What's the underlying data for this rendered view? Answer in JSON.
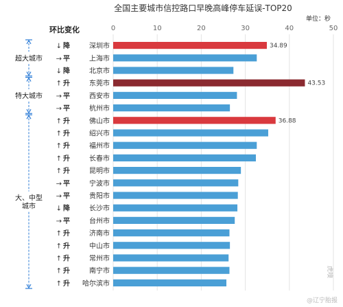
{
  "chart_data": {
    "type": "bar",
    "orientation": "horizontal",
    "title": "全国主要城市信控路口早晚高峰停车延误-TOP20",
    "unit_label": "单位：秒",
    "change_header": "环比变化",
    "xlim": [
      0,
      50
    ],
    "xticks": [
      0,
      10,
      20,
      30,
      40,
      50
    ],
    "grid": true,
    "categories": [
      "深圳市",
      "上海市",
      "北京市",
      "东莞市",
      "西安市",
      "杭州市",
      "佛山市",
      "绍兴市",
      "福州市",
      "长春市",
      "昆明市",
      "宁波市",
      "贵阳市",
      "长沙市",
      "台州市",
      "济南市",
      "中山市",
      "常州市",
      "南宁市",
      "哈尔滨市"
    ],
    "values": [
      34.89,
      32.6,
      27.3,
      43.53,
      28.1,
      26.5,
      36.88,
      35.2,
      32.6,
      32.4,
      29.0,
      28.4,
      28.3,
      28.2,
      27.6,
      26.4,
      26.5,
      26.2,
      26.4,
      25.7
    ],
    "data_labels": {
      "0": "34.89",
      "3": "43.53",
      "6": "36.88"
    },
    "changes": [
      {
        "arrow": "↓",
        "text": "降",
        "kind": "down"
      },
      {
        "arrow": "→",
        "text": "平",
        "kind": "flat"
      },
      {
        "arrow": "↓",
        "text": "降",
        "kind": "down"
      },
      {
        "arrow": "↑",
        "text": "升",
        "kind": "up"
      },
      {
        "arrow": "→",
        "text": "平",
        "kind": "flat"
      },
      {
        "arrow": "→",
        "text": "平",
        "kind": "flat"
      },
      {
        "arrow": "↑",
        "text": "升",
        "kind": "up"
      },
      {
        "arrow": "↑",
        "text": "升",
        "kind": "up"
      },
      {
        "arrow": "↑",
        "text": "升",
        "kind": "up"
      },
      {
        "arrow": "↑",
        "text": "升",
        "kind": "up"
      },
      {
        "arrow": "↑",
        "text": "升",
        "kind": "up"
      },
      {
        "arrow": "→",
        "text": "平",
        "kind": "flat"
      },
      {
        "arrow": "→",
        "text": "平",
        "kind": "flat"
      },
      {
        "arrow": "↓",
        "text": "降",
        "kind": "down"
      },
      {
        "arrow": "→",
        "text": "平",
        "kind": "flat"
      },
      {
        "arrow": "↑",
        "text": "升",
        "kind": "up"
      },
      {
        "arrow": "↑",
        "text": "升",
        "kind": "up"
      },
      {
        "arrow": "↑",
        "text": "升",
        "kind": "up"
      },
      {
        "arrow": "↑",
        "text": "升",
        "kind": "up"
      },
      {
        "arrow": "↑",
        "text": "升",
        "kind": "up"
      }
    ],
    "groups": [
      {
        "label_lines": [
          "超大城市"
        ],
        "from": 0,
        "to": 2
      },
      {
        "label_lines": [
          "特大城市"
        ],
        "from": 3,
        "to": 5
      },
      {
        "label_lines": [
          "大、中型",
          "城市"
        ],
        "from": 6,
        "to": 19
      }
    ],
    "bar_colors": {
      "default": "#4a9fd6",
      "highlight": "#d9393e",
      "max": "#8b2a30"
    },
    "highlight_index": [
      0,
      6
    ],
    "max_index": 3,
    "change_colors": {
      "up": "#e02424",
      "down": "#26a84a",
      "flat": "#555555"
    },
    "group_line_color": "#2b7bd6"
  },
  "watermark": {
    "brand": "虎嗅",
    "handle": "@辽宁胎报"
  }
}
